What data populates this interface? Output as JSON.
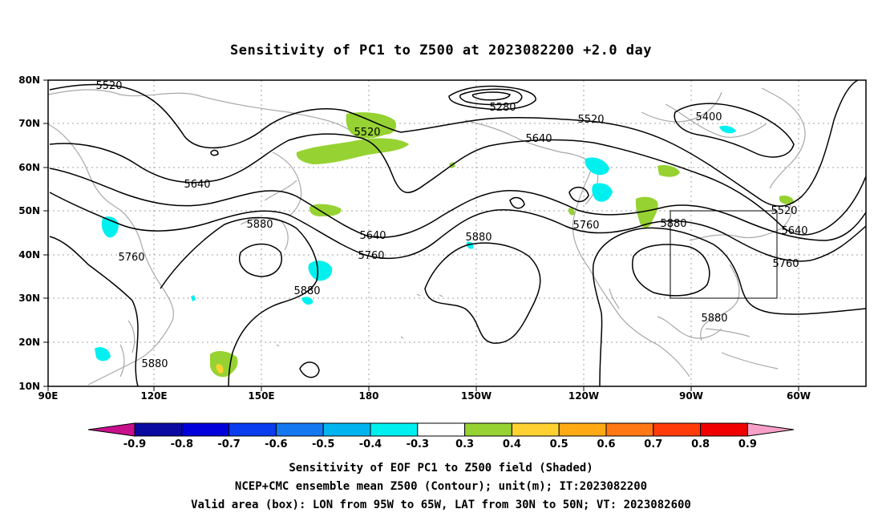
{
  "title": "Sensitivity of PC1 to Z500 at 2023082200 +2.0 day",
  "map": {
    "lon_ticks": [
      "90E",
      "120E",
      "150E",
      "180",
      "150W",
      "120W",
      "90W",
      "60W"
    ],
    "lat_ticks": [
      "80N",
      "70N",
      "60N",
      "50N",
      "40N",
      "30N",
      "20N",
      "10N"
    ],
    "grid": true,
    "contour_labels": [
      "5520",
      "5280",
      "5520",
      "5400",
      "5520",
      "5640",
      "5640",
      "5880",
      "5640",
      "5760",
      "5880",
      "5760",
      "5880",
      "5520",
      "5640",
      "5760",
      "5880",
      "5880",
      "5760",
      "5880"
    ],
    "valid_box": {
      "lon_range": [
        "95W",
        "65W"
      ],
      "lat_range": [
        "30N",
        "50N"
      ]
    }
  },
  "colorbar": {
    "labels": [
      "-0.9",
      "-0.8",
      "-0.7",
      "-0.6",
      "-0.5",
      "-0.4",
      "-0.3",
      "0.3",
      "0.4",
      "0.5",
      "0.6",
      "0.7",
      "0.8",
      "0.9"
    ],
    "colors": [
      "#c8108c",
      "#0a0aa0",
      "#0000dc",
      "#0a3cf0",
      "#1478f0",
      "#00b4f0",
      "#00f0f0",
      "#ffffff",
      "#96d232",
      "#ffd232",
      "#ffaa14",
      "#ff7814",
      "#ff3c0a",
      "#f00000",
      "#f8a0c8"
    ]
  },
  "captions": [
    "Sensitivity of EOF PC1 to Z500 field (Shaded)",
    "NCEP+CMC ensemble mean Z500 (Contour); unit(m); IT:2023082200",
    "Valid area (box): LON from 95W to 65W, LAT from 30N to 50N; VT: 2023082600"
  ]
}
